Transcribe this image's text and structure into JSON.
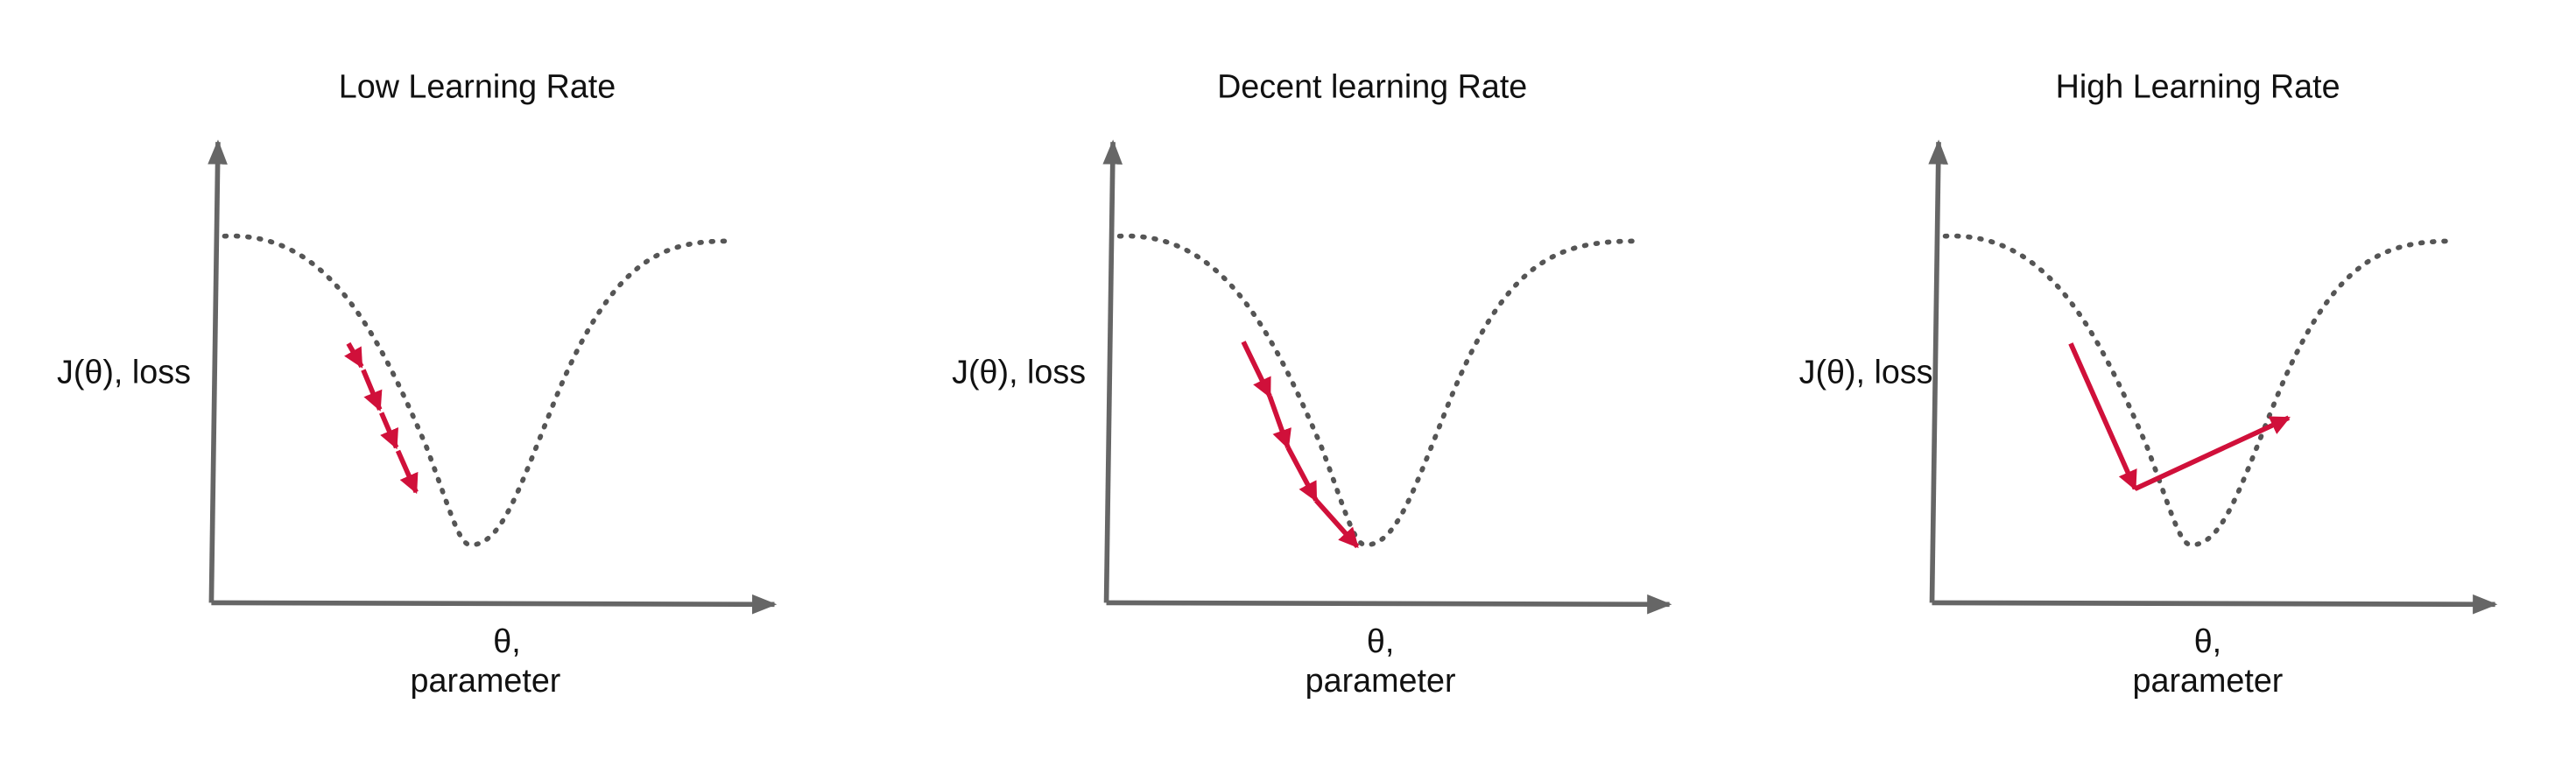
{
  "panels": [
    {
      "title": "Low Learning Rate",
      "y_label": "J(θ), loss",
      "x_label": [
        "θ,",
        "parameter"
      ]
    },
    {
      "title": "Decent learning Rate",
      "y_label": "J(θ), loss",
      "x_label": [
        "θ,",
        "parameter"
      ]
    },
    {
      "title": "High Learning Rate",
      "y_label": "J(θ), loss",
      "x_label": [
        "θ,",
        "parameter"
      ]
    }
  ]
}
